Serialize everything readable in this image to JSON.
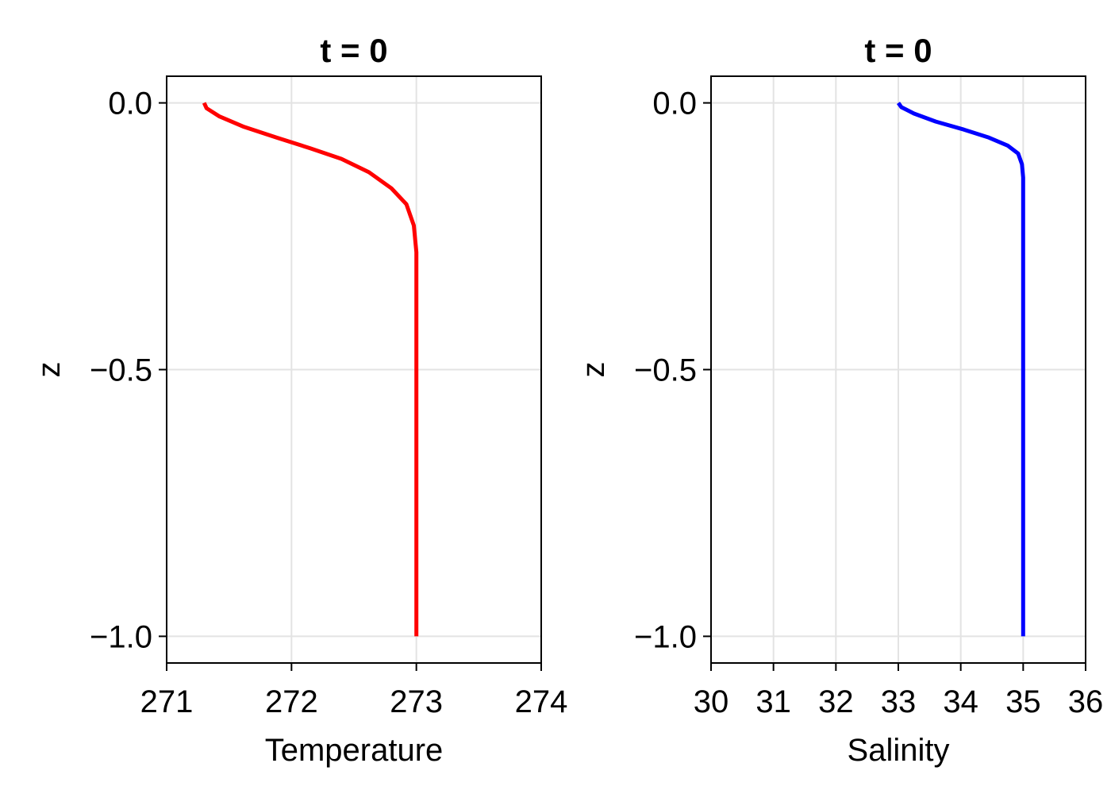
{
  "chart_data": [
    {
      "type": "line",
      "title": "t = 0",
      "xlabel": "Temperature",
      "ylabel": "z",
      "xlim": [
        271,
        274
      ],
      "ylim": [
        -1.05,
        0.05
      ],
      "x_ticks": [
        "271",
        "272",
        "273",
        "274"
      ],
      "y_ticks": [
        "0.0",
        "−0.5",
        "−1.0"
      ],
      "grid": true,
      "series": [
        {
          "color": "#ff0000",
          "points": [
            [
              271.3,
              0.0
            ],
            [
              271.32,
              -0.01
            ],
            [
              271.42,
              -0.025
            ],
            [
              271.62,
              -0.045
            ],
            [
              271.88,
              -0.065
            ],
            [
              272.15,
              -0.085
            ],
            [
              272.4,
              -0.105
            ],
            [
              272.62,
              -0.13
            ],
            [
              272.8,
              -0.16
            ],
            [
              272.92,
              -0.19
            ],
            [
              272.98,
              -0.23
            ],
            [
              273.0,
              -0.28
            ],
            [
              273.0,
              -0.4
            ],
            [
              273.0,
              -0.6
            ],
            [
              273.0,
              -0.8
            ],
            [
              273.0,
              -1.0
            ]
          ]
        }
      ]
    },
    {
      "type": "line",
      "title": "t = 0",
      "xlabel": "Salinity",
      "ylabel": "z",
      "xlim": [
        30,
        36
      ],
      "ylim": [
        -1.05,
        0.05
      ],
      "x_ticks": [
        "30",
        "31",
        "32",
        "33",
        "34",
        "35",
        "36"
      ],
      "y_ticks": [
        "0.0",
        "−0.5",
        "−1.0"
      ],
      "grid": true,
      "series": [
        {
          "color": "#0000ff",
          "points": [
            [
              33.0,
              0.0
            ],
            [
              33.05,
              -0.008
            ],
            [
              33.25,
              -0.02
            ],
            [
              33.6,
              -0.035
            ],
            [
              34.05,
              -0.05
            ],
            [
              34.45,
              -0.065
            ],
            [
              34.75,
              -0.08
            ],
            [
              34.92,
              -0.095
            ],
            [
              34.98,
              -0.115
            ],
            [
              35.0,
              -0.14
            ],
            [
              35.0,
              -0.2
            ],
            [
              35.0,
              -0.4
            ],
            [
              35.0,
              -0.7
            ],
            [
              35.0,
              -1.0
            ]
          ]
        }
      ]
    }
  ]
}
